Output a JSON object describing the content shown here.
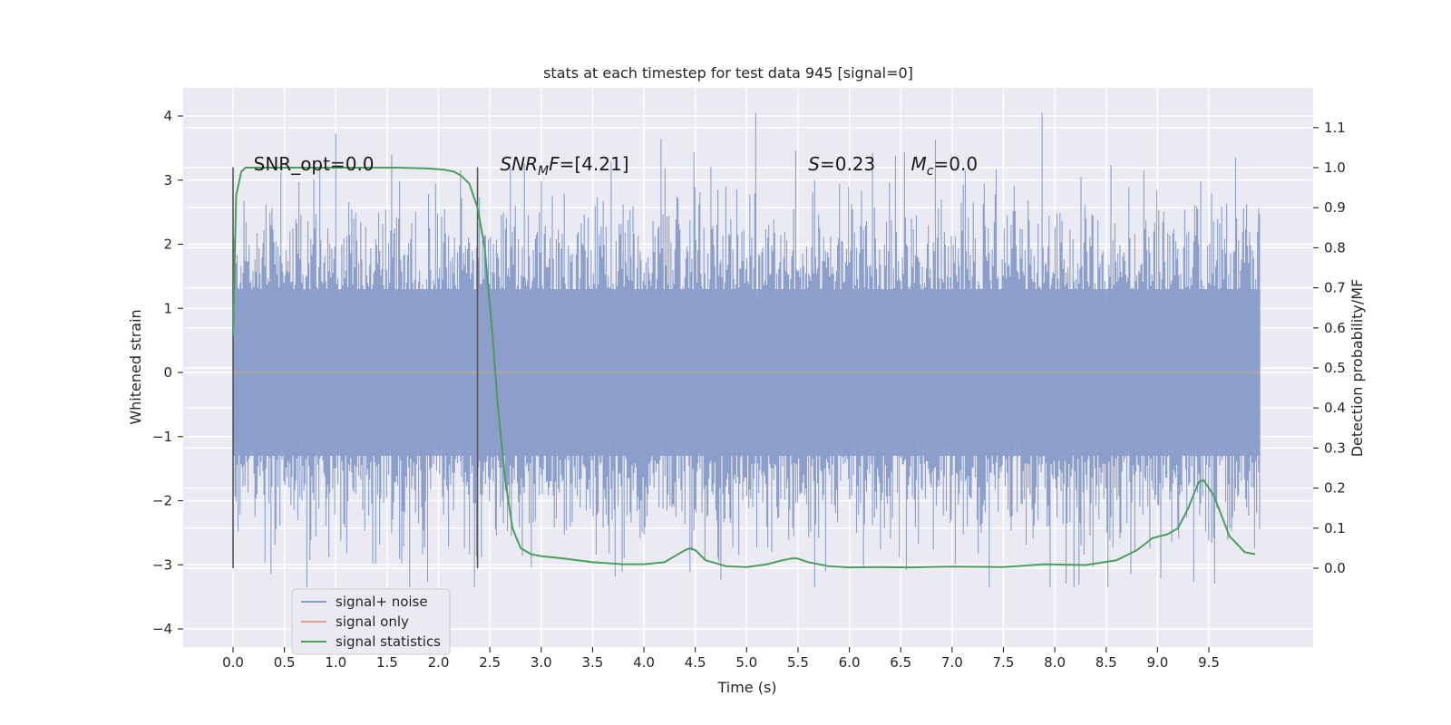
{
  "chart_data": {
    "type": "line",
    "title": "stats at each timestep for test data 945 [signal=0]",
    "xlabel": "Time (s)",
    "ylabel": "Whitened strain",
    "ylabel_right": "Detection probability/MF",
    "xlim": [
      -0.5,
      10.5
    ],
    "ylim": [
      -4.25,
      4.4
    ],
    "ylim_right": [
      -0.2,
      1.2
    ],
    "grid": true,
    "x_ticks": [
      "0.0",
      "0.5",
      "1.0",
      "1.5",
      "2.0",
      "2.5",
      "3.0",
      "3.5",
      "4.0",
      "4.5",
      "5.0",
      "5.5",
      "6.0",
      "6.5",
      "7.0",
      "7.5",
      "8.0",
      "8.5",
      "9.0",
      "9.5"
    ],
    "y_ticks": [
      "4",
      "3",
      "2",
      "1",
      "0",
      "−1",
      "−2",
      "−3",
      "−4"
    ],
    "y_ticks_right": [
      "1.1",
      "1.0",
      "0.9",
      "0.8",
      "0.7",
      "0.6",
      "0.5",
      "0.4",
      "0.3",
      "0.2",
      "0.1",
      "0.0"
    ],
    "annotations": [
      {
        "id": "snr-opt",
        "text": "SNR_opt=0.0",
        "x": 0.2,
        "y": 3.15
      },
      {
        "id": "snr-mf",
        "text": "SNR",
        "sub": "M",
        "suffix": "F=[4.21]",
        "x": 2.6,
        "y": 3.15
      },
      {
        "id": "s-stat",
        "text": "S",
        "suffix": "=0.23",
        "x": 5.6,
        "y": 3.15
      },
      {
        "id": "mc",
        "text": "M",
        "sub": "c",
        "suffix": "=0.0",
        "x": 6.6,
        "y": 3.15
      }
    ],
    "vlines": [
      {
        "x": 0.0,
        "ymin": -3.0,
        "ymax": 3.2
      },
      {
        "x": 2.38,
        "ymin": -3.0,
        "ymax": 3.2
      }
    ],
    "legend": {
      "placement": "lower-left",
      "entries": [
        {
          "label": "signal+ noise",
          "color": "#8c9fcb"
        },
        {
          "label": "signal only",
          "color": "#e8a090"
        },
        {
          "label": "signal statistics",
          "color": "#4a9e5c"
        }
      ]
    },
    "series": [
      {
        "name": "signal+ noise",
        "kind": "noise",
        "color": "#8c9fcb",
        "x_range": [
          0.0,
          10.0
        ],
        "typical_amplitude": 1.3,
        "peak_max": 4.05,
        "peak_min": -3.35
      },
      {
        "name": "signal only",
        "kind": "line",
        "color": "#e8a090",
        "x": [
          0.0,
          10.0
        ],
        "y": [
          0.0,
          0.0
        ]
      },
      {
        "name": "signal statistics",
        "kind": "line",
        "axis": "right",
        "color": "#4a9e5c",
        "x": [
          0.0,
          0.03,
          0.08,
          0.12,
          0.2,
          0.4,
          0.8,
          1.2,
          1.6,
          1.9,
          2.05,
          2.15,
          2.22,
          2.3,
          2.38,
          2.45,
          2.52,
          2.58,
          2.65,
          2.72,
          2.8,
          2.9,
          3.0,
          3.2,
          3.5,
          3.8,
          4.0,
          4.2,
          4.3,
          4.4,
          4.45,
          4.5,
          4.6,
          4.8,
          5.0,
          5.2,
          5.35,
          5.45,
          5.5,
          5.6,
          5.8,
          6.0,
          6.3,
          6.6,
          7.0,
          7.5,
          7.9,
          8.3,
          8.6,
          8.8,
          8.95,
          9.1,
          9.2,
          9.3,
          9.4,
          9.45,
          9.55,
          9.7,
          9.85,
          9.95
        ],
        "y": [
          0.58,
          0.93,
          0.99,
          1.0,
          1.0,
          1.0,
          1.0,
          1.0,
          1.0,
          0.998,
          0.995,
          0.99,
          0.98,
          0.96,
          0.9,
          0.8,
          0.6,
          0.4,
          0.22,
          0.1,
          0.05,
          0.035,
          0.03,
          0.025,
          0.015,
          0.01,
          0.01,
          0.015,
          0.03,
          0.045,
          0.05,
          0.045,
          0.02,
          0.005,
          0.003,
          0.01,
          0.02,
          0.025,
          0.024,
          0.015,
          0.005,
          0.002,
          0.003,
          0.002,
          0.004,
          0.003,
          0.01,
          0.008,
          0.02,
          0.045,
          0.075,
          0.085,
          0.1,
          0.15,
          0.215,
          0.22,
          0.18,
          0.08,
          0.04,
          0.035
        ]
      }
    ]
  }
}
